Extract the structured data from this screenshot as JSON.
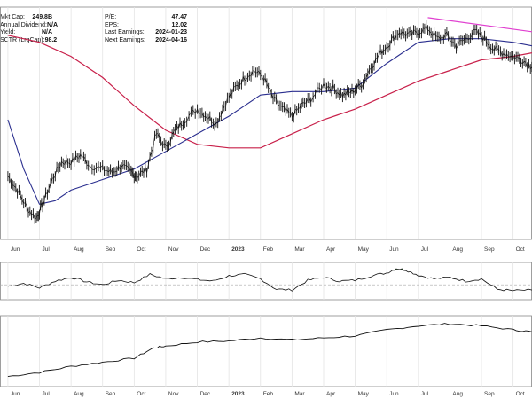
{
  "stats_left": [
    {
      "label": "Mkt Cap:",
      "value": "249.8B"
    },
    {
      "label": "Annual Dividend:",
      "value": "N/A"
    },
    {
      "label": "Yield:",
      "value": "N/A"
    },
    {
      "label": "SCTR (LrgCap):",
      "value": "98.2"
    }
  ],
  "stats_right": [
    {
      "label": "P/E:",
      "value": "47.47"
    },
    {
      "label": "EPS:",
      "value": "12.02"
    },
    {
      "label": "Last Earnings:",
      "value": "2024-01-23"
    },
    {
      "label": "Next Earnings:",
      "value": "2024-04-16"
    }
  ],
  "colors": {
    "price": "#111111",
    "ma_short": "#2b2f8f",
    "ma_long": "#c8204a",
    "trendline": "#e040d0",
    "osc_fill": "#3a9a3a",
    "grid": "#e4e4e4",
    "frame": "#888888"
  },
  "chart_data": {
    "type": "line",
    "x_axis_labels": [
      "Jun",
      "Jul",
      "Aug",
      "Sep",
      "Oct",
      "Nov",
      "Dec",
      "2023",
      "Feb",
      "Mar",
      "Apr",
      "May",
      "Jun",
      "Jul",
      "Aug",
      "Sep",
      "Oct"
    ],
    "x_axis_label_positions": [
      0,
      1,
      2,
      3,
      4,
      5,
      6,
      7,
      8,
      9,
      10,
      11,
      12,
      13,
      14,
      15,
      16
    ],
    "price_bars_monthly_close": [
      52,
      47,
      60,
      58,
      55,
      68,
      75,
      78,
      85,
      74,
      83,
      82,
      92,
      98,
      92,
      95,
      88
    ],
    "price_series": [
      {
        "t": 0.0,
        "v": 56
      },
      {
        "t": 0.3,
        "v": 52
      },
      {
        "t": 0.6,
        "v": 47
      },
      {
        "t": 0.9,
        "v": 44
      },
      {
        "t": 1.1,
        "v": 48
      },
      {
        "t": 1.4,
        "v": 55
      },
      {
        "t": 1.7,
        "v": 60
      },
      {
        "t": 2.0,
        "v": 60
      },
      {
        "t": 2.3,
        "v": 62
      },
      {
        "t": 2.6,
        "v": 59
      },
      {
        "t": 3.0,
        "v": 58
      },
      {
        "t": 3.3,
        "v": 57
      },
      {
        "t": 3.6,
        "v": 59
      },
      {
        "t": 3.9,
        "v": 57
      },
      {
        "t": 4.1,
        "v": 56
      },
      {
        "t": 4.4,
        "v": 58
      },
      {
        "t": 4.7,
        "v": 68
      },
      {
        "t": 5.0,
        "v": 64
      },
      {
        "t": 5.3,
        "v": 69
      },
      {
        "t": 5.6,
        "v": 72
      },
      {
        "t": 6.0,
        "v": 75
      },
      {
        "t": 6.3,
        "v": 73
      },
      {
        "t": 6.6,
        "v": 71
      },
      {
        "t": 6.9,
        "v": 77
      },
      {
        "t": 7.2,
        "v": 81
      },
      {
        "t": 7.5,
        "v": 84
      },
      {
        "t": 7.8,
        "v": 86
      },
      {
        "t": 8.1,
        "v": 84
      },
      {
        "t": 8.4,
        "v": 78
      },
      {
        "t": 8.7,
        "v": 75
      },
      {
        "t": 9.0,
        "v": 73
      },
      {
        "t": 9.3,
        "v": 76
      },
      {
        "t": 9.6,
        "v": 78
      },
      {
        "t": 10.0,
        "v": 82
      },
      {
        "t": 10.3,
        "v": 81
      },
      {
        "t": 10.6,
        "v": 79
      },
      {
        "t": 10.9,
        "v": 80
      },
      {
        "t": 11.2,
        "v": 82
      },
      {
        "t": 11.5,
        "v": 87
      },
      {
        "t": 11.8,
        "v": 91
      },
      {
        "t": 12.1,
        "v": 94
      },
      {
        "t": 12.4,
        "v": 97
      },
      {
        "t": 12.7,
        "v": 96
      },
      {
        "t": 13.0,
        "v": 97
      },
      {
        "t": 13.3,
        "v": 98
      },
      {
        "t": 13.6,
        "v": 95
      },
      {
        "t": 13.9,
        "v": 96
      },
      {
        "t": 14.2,
        "v": 93
      },
      {
        "t": 14.5,
        "v": 95
      },
      {
        "t": 14.8,
        "v": 97
      },
      {
        "t": 15.1,
        "v": 95
      },
      {
        "t": 15.4,
        "v": 92
      },
      {
        "t": 15.7,
        "v": 91
      },
      {
        "t": 16.0,
        "v": 90
      },
      {
        "t": 16.3,
        "v": 89
      },
      {
        "t": 16.6,
        "v": 87
      }
    ],
    "ma_short_series": [
      {
        "t": 0.0,
        "v": 72
      },
      {
        "t": 0.5,
        "v": 58
      },
      {
        "t": 1.0,
        "v": 48
      },
      {
        "t": 1.5,
        "v": 49
      },
      {
        "t": 2.0,
        "v": 52
      },
      {
        "t": 3.0,
        "v": 55
      },
      {
        "t": 4.0,
        "v": 58
      },
      {
        "t": 5.0,
        "v": 63
      },
      {
        "t": 6.0,
        "v": 68
      },
      {
        "t": 7.0,
        "v": 73
      },
      {
        "t": 8.0,
        "v": 79
      },
      {
        "t": 9.0,
        "v": 80
      },
      {
        "t": 10.0,
        "v": 80
      },
      {
        "t": 11.0,
        "v": 81
      },
      {
        "t": 12.0,
        "v": 88
      },
      {
        "t": 13.0,
        "v": 94
      },
      {
        "t": 14.0,
        "v": 95
      },
      {
        "t": 15.0,
        "v": 95
      },
      {
        "t": 16.0,
        "v": 94
      },
      {
        "t": 16.6,
        "v": 93
      }
    ],
    "ma_long_series": [
      {
        "t": 0.0,
        "v": 96
      },
      {
        "t": 1.0,
        "v": 94
      },
      {
        "t": 2.0,
        "v": 90
      },
      {
        "t": 3.0,
        "v": 84
      },
      {
        "t": 4.0,
        "v": 76
      },
      {
        "t": 5.0,
        "v": 69
      },
      {
        "t": 6.0,
        "v": 65
      },
      {
        "t": 7.0,
        "v": 64
      },
      {
        "t": 8.0,
        "v": 64
      },
      {
        "t": 9.0,
        "v": 68
      },
      {
        "t": 10.0,
        "v": 72
      },
      {
        "t": 11.0,
        "v": 75
      },
      {
        "t": 12.0,
        "v": 79
      },
      {
        "t": 13.0,
        "v": 83
      },
      {
        "t": 14.0,
        "v": 86
      },
      {
        "t": 15.0,
        "v": 89
      },
      {
        "t": 16.0,
        "v": 90
      },
      {
        "t": 16.6,
        "v": 91
      }
    ],
    "trendline": [
      {
        "t": 13.3,
        "v": 101
      },
      {
        "t": 16.6,
        "v": 97
      }
    ],
    "oscillator_series": [
      {
        "t": 0.0,
        "v": 48
      },
      {
        "t": 0.5,
        "v": 52
      },
      {
        "t": 1.0,
        "v": 46
      },
      {
        "t": 1.5,
        "v": 55
      },
      {
        "t": 2.0,
        "v": 60
      },
      {
        "t": 2.5,
        "v": 54
      },
      {
        "t": 3.0,
        "v": 50
      },
      {
        "t": 3.5,
        "v": 56
      },
      {
        "t": 4.0,
        "v": 53
      },
      {
        "t": 4.5,
        "v": 64
      },
      {
        "t": 5.0,
        "v": 58
      },
      {
        "t": 5.5,
        "v": 60
      },
      {
        "t": 6.0,
        "v": 57
      },
      {
        "t": 6.5,
        "v": 55
      },
      {
        "t": 7.0,
        "v": 62
      },
      {
        "t": 7.5,
        "v": 64
      },
      {
        "t": 8.0,
        "v": 58
      },
      {
        "t": 8.5,
        "v": 44
      },
      {
        "t": 9.0,
        "v": 43
      },
      {
        "t": 9.5,
        "v": 56
      },
      {
        "t": 10.0,
        "v": 60
      },
      {
        "t": 10.5,
        "v": 55
      },
      {
        "t": 11.0,
        "v": 56
      },
      {
        "t": 11.5,
        "v": 62
      },
      {
        "t": 12.0,
        "v": 66
      },
      {
        "t": 12.3,
        "v": 72
      },
      {
        "t": 12.6,
        "v": 70
      },
      {
        "t": 13.0,
        "v": 63
      },
      {
        "t": 13.5,
        "v": 58
      },
      {
        "t": 14.0,
        "v": 60
      },
      {
        "t": 14.5,
        "v": 55
      },
      {
        "t": 15.0,
        "v": 58
      },
      {
        "t": 15.5,
        "v": 44
      },
      {
        "t": 16.0,
        "v": 42
      },
      {
        "t": 16.6,
        "v": 43
      }
    ],
    "oscillator_overbought": 70,
    "oscillator_midline": 50,
    "relative_series": [
      {
        "t": 0.0,
        "v": 20
      },
      {
        "t": 1.0,
        "v": 24
      },
      {
        "t": 2.0,
        "v": 30
      },
      {
        "t": 3.0,
        "v": 34
      },
      {
        "t": 4.0,
        "v": 38
      },
      {
        "t": 4.6,
        "v": 48
      },
      {
        "t": 5.0,
        "v": 50
      },
      {
        "t": 6.0,
        "v": 54
      },
      {
        "t": 7.0,
        "v": 55
      },
      {
        "t": 8.0,
        "v": 58
      },
      {
        "t": 9.0,
        "v": 56
      },
      {
        "t": 10.0,
        "v": 58
      },
      {
        "t": 11.0,
        "v": 60
      },
      {
        "t": 12.0,
        "v": 66
      },
      {
        "t": 13.0,
        "v": 70
      },
      {
        "t": 14.0,
        "v": 72
      },
      {
        "t": 15.0,
        "v": 70
      },
      {
        "t": 16.0,
        "v": 66
      },
      {
        "t": 16.6,
        "v": 64
      }
    ]
  }
}
